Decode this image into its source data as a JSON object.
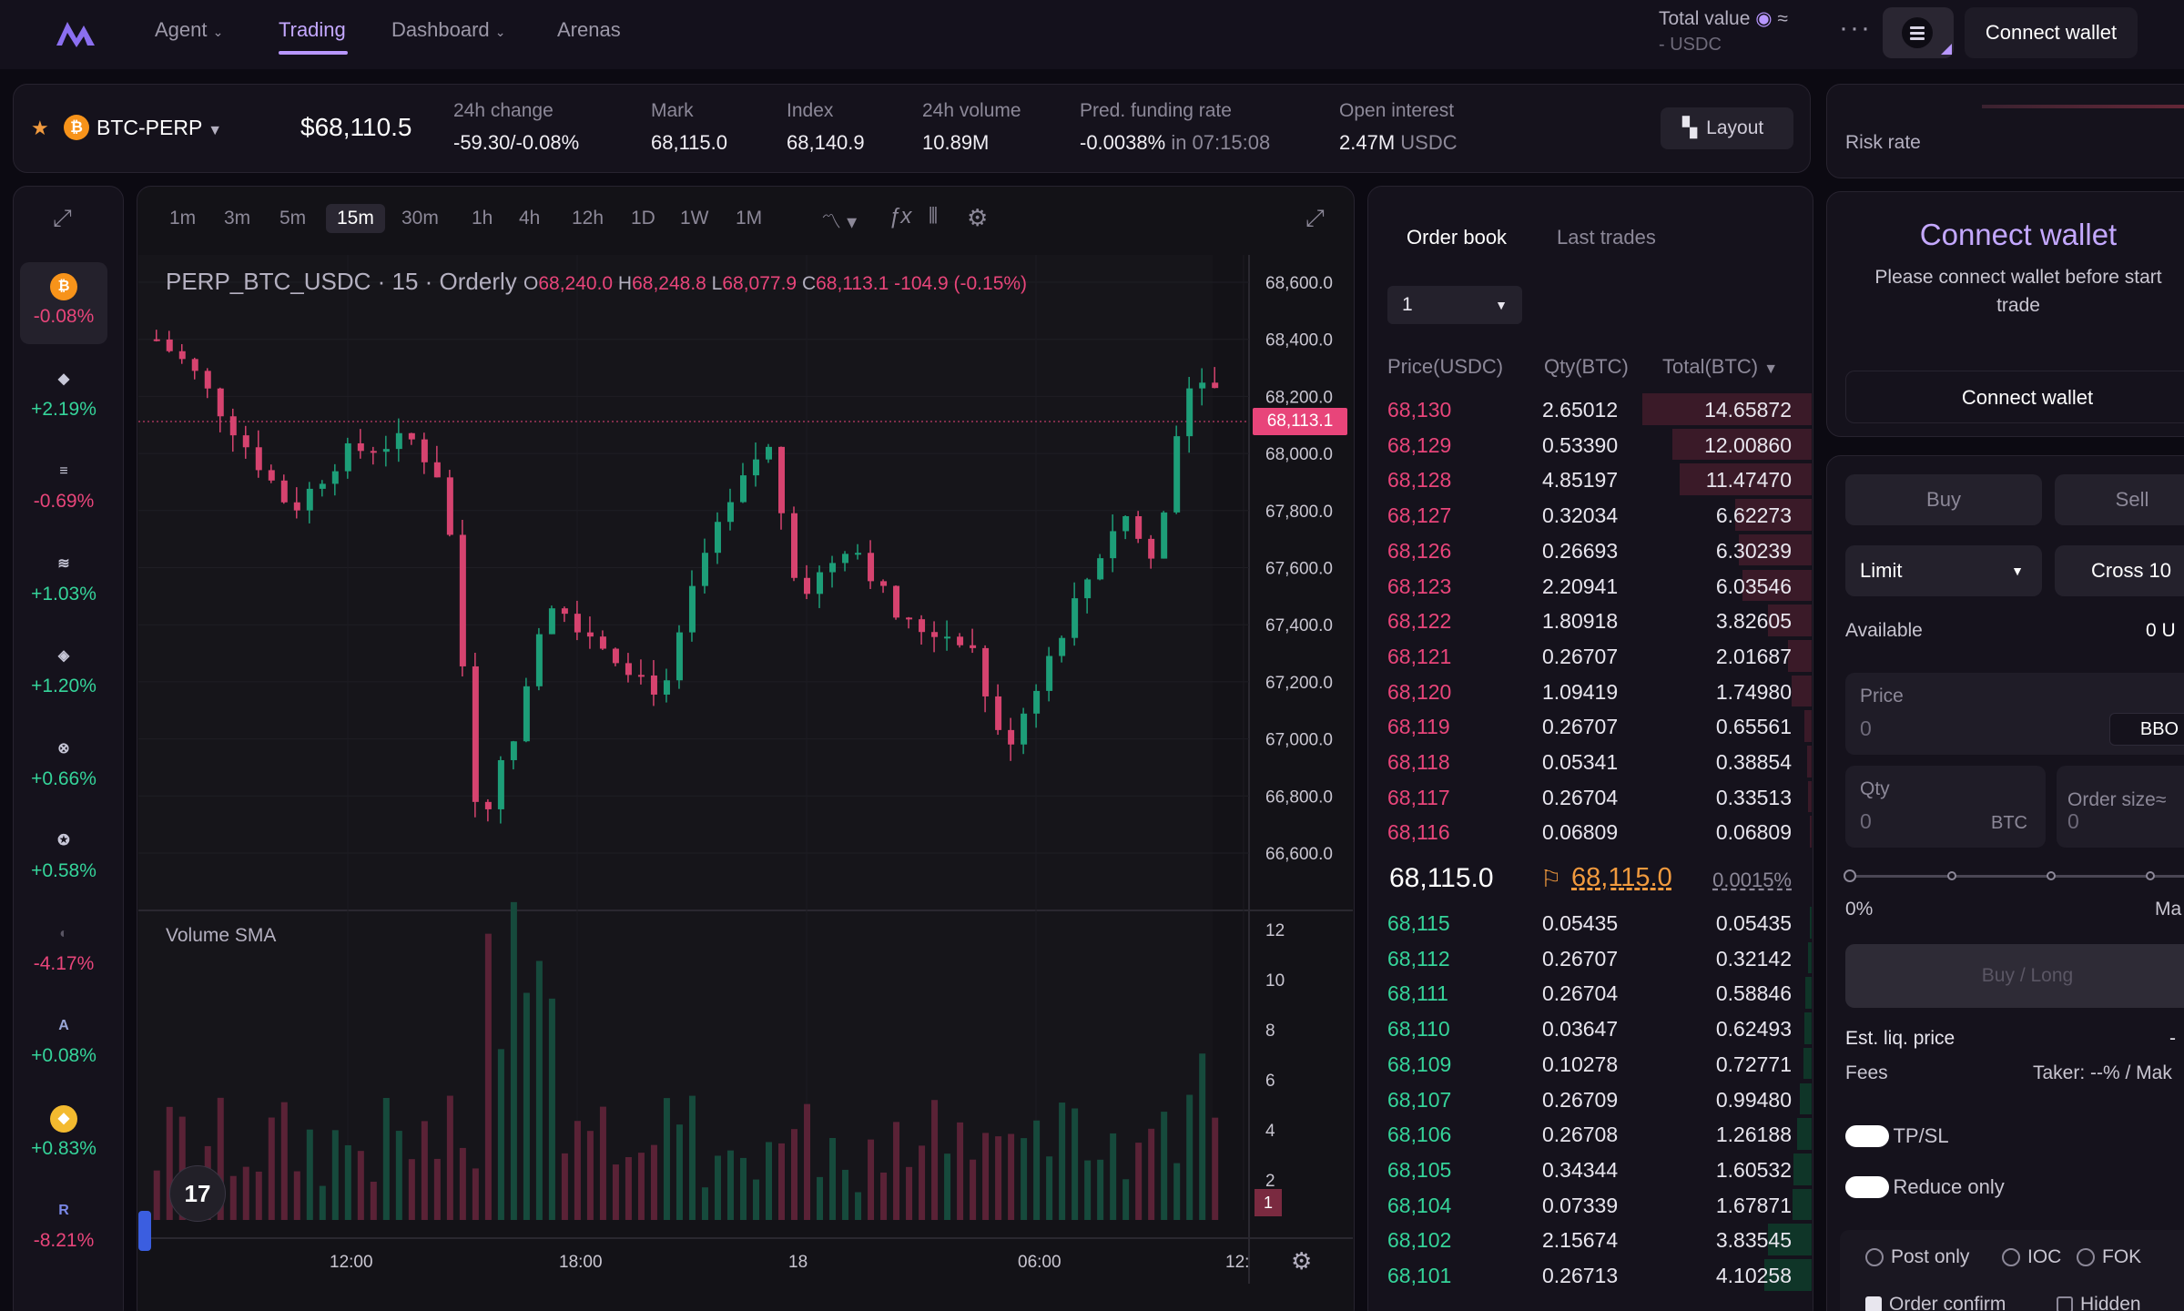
{
  "nav": {
    "items": [
      {
        "label": "Agent",
        "dropdown": true
      },
      {
        "label": "Trading",
        "active": true
      },
      {
        "label": "Dashboard",
        "dropdown": true
      },
      {
        "label": "Arenas"
      }
    ],
    "total_value_label": "Total value",
    "total_value_dash": "-",
    "total_value_unit": "USDC",
    "connect_wallet": "Connect wallet"
  },
  "ticker": {
    "symbol": "BTC-PERP",
    "price": "$68,110.5",
    "stats": [
      {
        "label": "24h change",
        "value": "-59.30/-0.08%"
      },
      {
        "label": "Mark",
        "value": "68,115.0"
      },
      {
        "label": "Index",
        "value": "68,140.9"
      },
      {
        "label": "24h volume",
        "value": "10.89M"
      },
      {
        "label": "Pred. funding rate",
        "value": "-0.0038%",
        "suffix": "in 07:15:08"
      },
      {
        "label": "Open interest",
        "value": "2.47M",
        "suffix": "USDC"
      }
    ],
    "layout_label": "Layout"
  },
  "risk": {
    "label": "Risk rate"
  },
  "sidebar": {
    "coins": [
      {
        "icon": "bitcoin-icon",
        "symbol": "₿",
        "change": "-0.08%",
        "color": "#f7931a",
        "up": false,
        "active": true
      },
      {
        "icon": "ethereum-icon",
        "symbol": "◆",
        "change": "+2.19%",
        "color": "#c8c8d8",
        "up": true
      },
      {
        "icon": "solana-icon",
        "symbol": "≡",
        "change": "-0.69%",
        "color": "#c8c8d8",
        "up": false
      },
      {
        "icon": "coin-icon",
        "symbol": "≋",
        "change": "+1.03%",
        "color": "#c8c8d8",
        "up": true
      },
      {
        "icon": "coin-icon",
        "symbol": "◈",
        "change": "+1.20%",
        "color": "#c8c8d8",
        "up": true
      },
      {
        "icon": "coin-icon",
        "symbol": "⊗",
        "change": "+0.66%",
        "color": "#c8c8d8",
        "up": true
      },
      {
        "icon": "coin-icon",
        "symbol": "✪",
        "change": "+0.58%",
        "color": "#c8c8d8",
        "up": true
      },
      {
        "icon": "coin-icon",
        "symbol": "◐",
        "change": "-4.17%",
        "color": "#5a5664",
        "up": false
      },
      {
        "icon": "arbitrum-icon",
        "symbol": "A",
        "change": "+0.08%",
        "color": "#9aa8d8",
        "up": true
      },
      {
        "icon": "bnb-icon",
        "symbol": "◆",
        "change": "+0.83%",
        "color": "#f3ba2f",
        "up": true
      },
      {
        "icon": "coin-icon",
        "symbol": "R",
        "change": "-8.21%",
        "color": "#7a88e8",
        "up": false
      }
    ]
  },
  "chart": {
    "timeframes": [
      "1m",
      "3m",
      "5m",
      "15m",
      "30m",
      "1h",
      "4h",
      "12h",
      "1D",
      "1W",
      "1M"
    ],
    "active_timeframe": "15m",
    "title": "PERP_BTC_USDC · 15 · Orderly",
    "ohlc": {
      "o": "68,240.0",
      "h": "68,248.8",
      "l": "68,077.9",
      "c": "68,113.1",
      "chg": "-104.9 (-0.15%)"
    },
    "price_axis": [
      "68,600.0",
      "68,400.0",
      "68,200.0",
      "68,000.0",
      "67,800.0",
      "67,600.0",
      "67,400.0",
      "67,200.0",
      "67,000.0",
      "66,800.0",
      "66,600.0"
    ],
    "last_price_tag": "68,113.1",
    "volume_label": "Volume SMA",
    "volume_axis": [
      "12",
      "10",
      "8",
      "6",
      "4",
      "2"
    ],
    "volume_tag": "1",
    "time_axis": [
      "12:00",
      "18:00",
      "18",
      "06:00",
      "12:"
    ]
  },
  "orderbook": {
    "tabs": [
      "Order book",
      "Last trades"
    ],
    "depth": "1",
    "headers": [
      "Price(USDC)",
      "Qty(BTC)",
      "Total(BTC)"
    ],
    "asks": [
      [
        "68,130",
        "2.65012",
        "14.65872"
      ],
      [
        "68,129",
        "0.53390",
        "12.00860"
      ],
      [
        "68,128",
        "4.85197",
        "11.47470"
      ],
      [
        "68,127",
        "0.32034",
        "6.62273"
      ],
      [
        "68,126",
        "0.26693",
        "6.30239"
      ],
      [
        "68,123",
        "2.20941",
        "6.03546"
      ],
      [
        "68,122",
        "1.80918",
        "3.82605"
      ],
      [
        "68,121",
        "0.26707",
        "2.01687"
      ],
      [
        "68,120",
        "1.09419",
        "1.74980"
      ],
      [
        "68,119",
        "0.26707",
        "0.65561"
      ],
      [
        "68,118",
        "0.05341",
        "0.38854"
      ],
      [
        "68,117",
        "0.26704",
        "0.33513"
      ],
      [
        "68,116",
        "0.06809",
        "0.06809"
      ]
    ],
    "mid_price": "68,115.0",
    "mark_price": "68,115.0",
    "spread": "0.0015%",
    "bids": [
      [
        "68,115",
        "0.05435",
        "0.05435"
      ],
      [
        "68,112",
        "0.26707",
        "0.32142"
      ],
      [
        "68,111",
        "0.26704",
        "0.58846"
      ],
      [
        "68,110",
        "0.03647",
        "0.62493"
      ],
      [
        "68,109",
        "0.10278",
        "0.72771"
      ],
      [
        "68,107",
        "0.26709",
        "0.99480"
      ],
      [
        "68,106",
        "0.26708",
        "1.26188"
      ],
      [
        "68,105",
        "0.34344",
        "1.60532"
      ],
      [
        "68,104",
        "0.07339",
        "1.67871"
      ],
      [
        "68,102",
        "2.15674",
        "3.83545"
      ],
      [
        "68,101",
        "0.26713",
        "4.10258"
      ]
    ],
    "ask_depth": [
      1.0,
      0.82,
      0.78,
      0.45,
      0.43,
      0.41,
      0.26,
      0.14,
      0.12,
      0.045,
      0.026,
      0.023,
      0.005
    ],
    "bid_depth": [
      0.004,
      0.022,
      0.04,
      0.043,
      0.05,
      0.068,
      0.086,
      0.11,
      0.115,
      0.26,
      0.28
    ]
  },
  "connect": {
    "title": "Connect wallet",
    "desc": "Please connect wallet before start trade",
    "button": "Connect wallet"
  },
  "order": {
    "buy": "Buy",
    "sell": "Sell",
    "order_type": "Limit",
    "margin": "Cross 10",
    "available_label": "Available",
    "available_value": "0 U",
    "price_label": "Price",
    "price_placeholder": "0",
    "bbo": "BBO",
    "qty_label": "Qty",
    "qty_placeholder": "0",
    "qty_unit": "BTC",
    "order_size": "Order size≈",
    "order_size_value": "0",
    "slider_min": "0%",
    "slider_max": "Ma",
    "submit": "Buy / Long",
    "est_liq_label": "Est. liq. price",
    "est_liq_value": "-",
    "fees_label": "Fees",
    "fees_value": "Taker: --% / Mak",
    "tpsl": "TP/SL",
    "reduce_only": "Reduce only",
    "post_only": "Post only",
    "ioc": "IOC",
    "fok": "FOK",
    "order_confirm": "Order confirm",
    "hidden": "Hidden"
  },
  "colors": {
    "up": "#35d49a",
    "down": "#e8457a",
    "accent": "#b897ff"
  }
}
